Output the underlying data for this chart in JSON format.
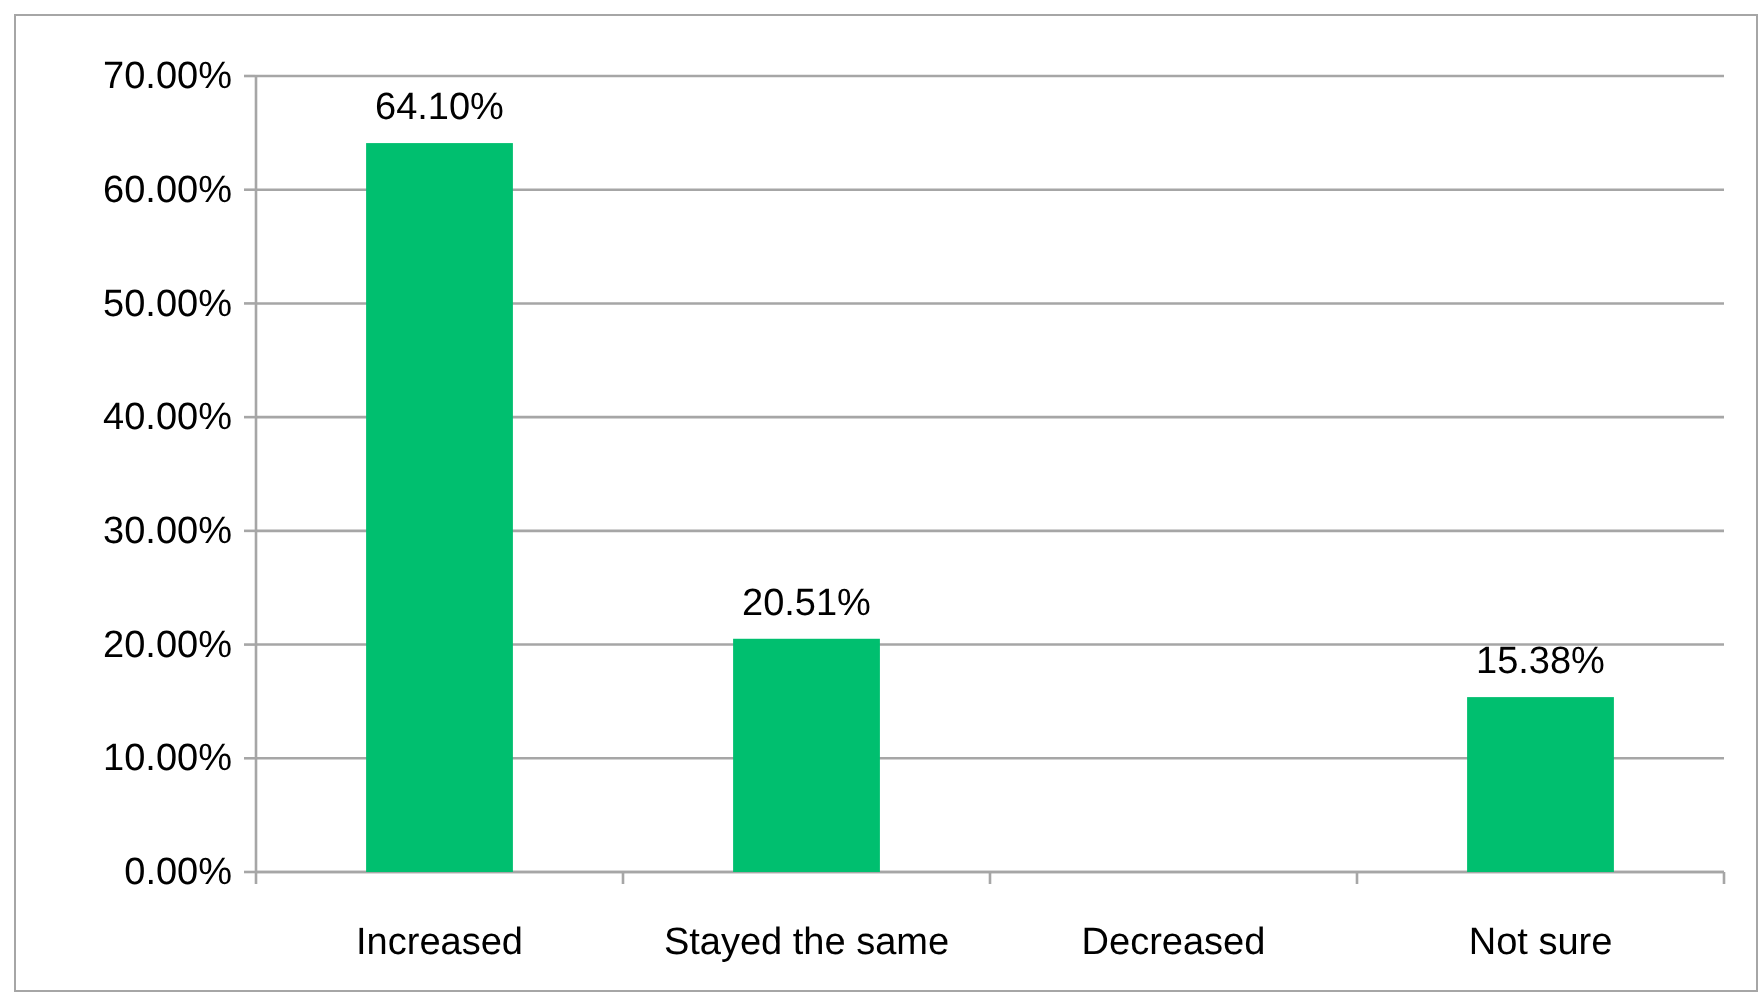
{
  "chart_data": {
    "type": "bar",
    "categories": [
      "Increased",
      "Stayed the same",
      "Decreased",
      "Not sure"
    ],
    "values": [
      64.1,
      20.51,
      0,
      15.38
    ],
    "color": "#00bf6f",
    "value_labels": [
      "64.10%",
      "20.51%",
      null,
      "15.38%"
    ],
    "ylim": [
      0,
      70
    ],
    "yticks": [
      {
        "value": 0,
        "label": "0.00%"
      },
      {
        "value": 10,
        "label": "10.00%"
      },
      {
        "value": 20,
        "label": "20.00%"
      },
      {
        "value": 30,
        "label": "30.00%"
      },
      {
        "value": 40,
        "label": "40.00%"
      },
      {
        "value": 50,
        "label": "50.00%"
      },
      {
        "value": 60,
        "label": "60.00%"
      },
      {
        "value": 70,
        "label": "70.00%"
      }
    ],
    "grid": "y"
  }
}
